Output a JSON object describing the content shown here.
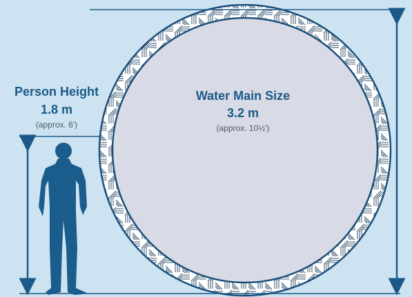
{
  "person": {
    "title": "Person Height",
    "value": "1.8 m",
    "note": "(approx. 6')"
  },
  "pipe": {
    "title": "Water Main Size",
    "value": "3.2 m",
    "note": "(approx. 10½')"
  }
}
